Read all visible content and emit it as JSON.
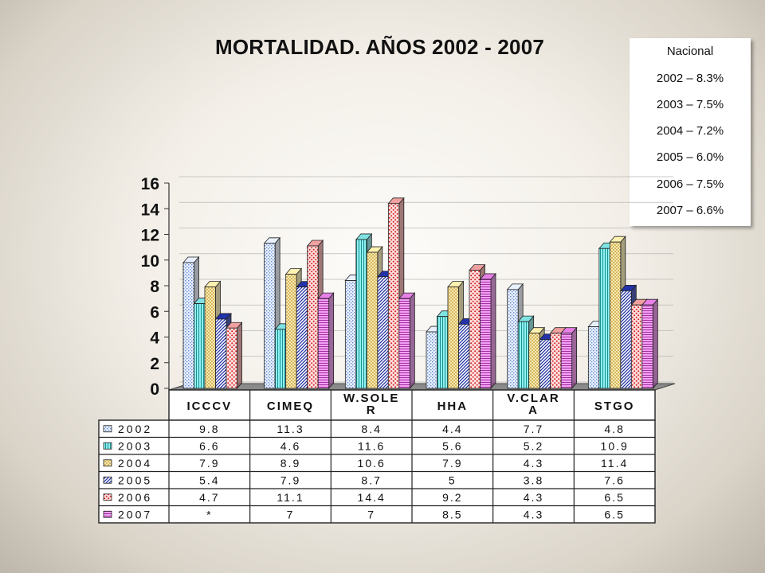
{
  "title": "MORTALIDAD. AÑOS 2002 - 2007",
  "nacional": {
    "header": "Nacional",
    "rows": [
      "2002 – 8.3%",
      "2003 – 7.5%",
      "2004 – 7.2%",
      "2005 – 6.0%",
      "2006 – 7.5%",
      "2007 – 6.6%"
    ]
  },
  "chart_data": {
    "type": "bar",
    "title": "MORTALIDAD. AÑOS 2002 - 2007",
    "categories": [
      "ICCCV",
      "CIMEQ",
      "W.SOLER",
      "HHA",
      "V.CLARA",
      "STGO"
    ],
    "category_labels": [
      [
        "ICCCV"
      ],
      [
        "CIMEQ"
      ],
      [
        "W.SOLE",
        "R"
      ],
      [
        "HHA"
      ],
      [
        "V.CLAR",
        "A"
      ],
      [
        "STGO"
      ]
    ],
    "ylim": [
      0,
      16
    ],
    "yticks": [
      0,
      2,
      4,
      6,
      8,
      10,
      12,
      14,
      16
    ],
    "grid": true,
    "legend": "table-bottom",
    "series": [
      {
        "name": "2002",
        "values": [
          9.8,
          11.3,
          8.4,
          4.4,
          7.7,
          4.8
        ],
        "labels": [
          "9.8",
          "11.3",
          "8.4",
          "4.4",
          "7.7",
          "4.8"
        ],
        "color": "#e8f0ff"
      },
      {
        "name": "2003",
        "values": [
          6.6,
          4.6,
          11.6,
          5.6,
          5.2,
          10.9
        ],
        "labels": [
          "6.6",
          "4.6",
          "11.6",
          "5.6",
          "5.2",
          "10.9"
        ],
        "color": "#7fe3e3"
      },
      {
        "name": "2004",
        "values": [
          7.9,
          8.9,
          10.6,
          7.9,
          4.3,
          11.4
        ],
        "labels": [
          "7.9",
          "8.9",
          "10.6",
          "7.9",
          "4.3",
          "11.4"
        ],
        "color": "#fff2b0"
      },
      {
        "name": "2005",
        "values": [
          5.4,
          7.9,
          8.7,
          5,
          3.8,
          7.6
        ],
        "labels": [
          "5.4",
          "7.9",
          "8.7",
          "5",
          "3.8",
          "7.6"
        ],
        "color": "#2233aa"
      },
      {
        "name": "2006",
        "values": [
          4.7,
          11.1,
          14.4,
          9.2,
          4.3,
          6.5
        ],
        "labels": [
          "4.7",
          "11.1",
          "14.4",
          "9.2",
          "4.3",
          "6.5"
        ],
        "color": "#f0a0a0"
      },
      {
        "name": "2007",
        "values": [
          null,
          7,
          7,
          8.5,
          4.3,
          6.5
        ],
        "labels": [
          "*",
          "7",
          "7",
          "8.5",
          "4.3",
          "6.5"
        ],
        "color": "#e880e8"
      }
    ]
  }
}
